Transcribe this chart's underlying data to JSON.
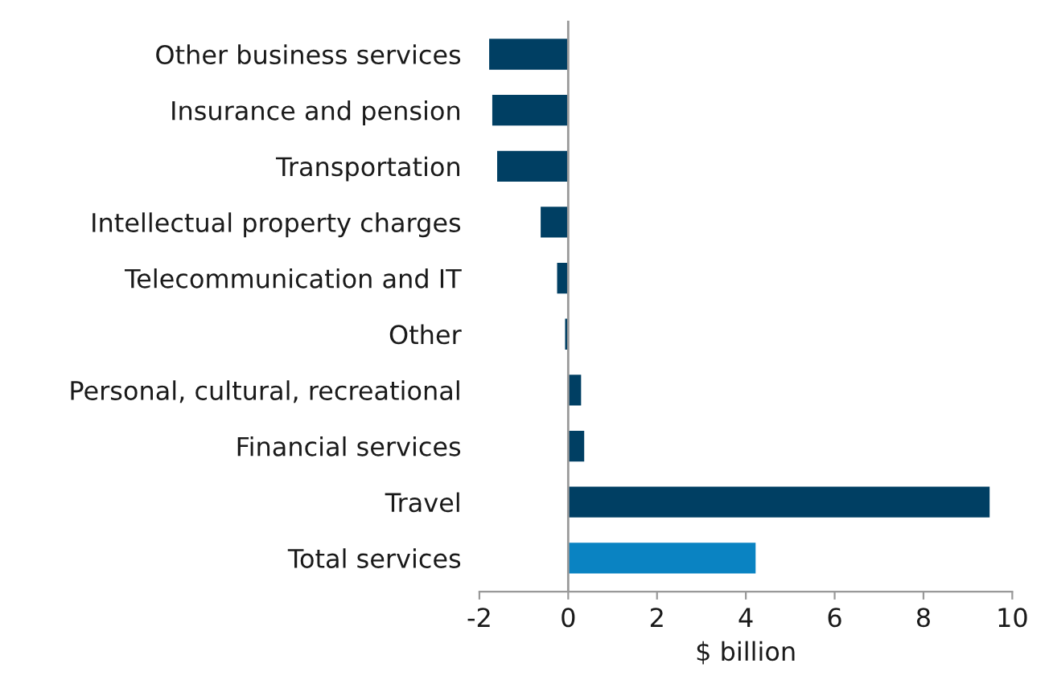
{
  "chart_data": {
    "type": "bar",
    "orientation": "horizontal",
    "xlabel": "$ billion",
    "categories": [
      "Other business services",
      "Insurance and pension",
      "Transportation",
      "Intellectual property charges",
      "Telecommunication and IT",
      "Other",
      "Personal, cultural, recreational",
      "Financial services",
      "Travel",
      "Total services"
    ],
    "values": [
      -1.78,
      -1.71,
      -1.6,
      -0.62,
      -0.25,
      -0.07,
      0.29,
      0.36,
      9.49,
      4.22
    ],
    "colors": [
      "#003f63",
      "#003f63",
      "#003f63",
      "#003f63",
      "#003f63",
      "#003f63",
      "#003f63",
      "#003f63",
      "#003f63",
      "#0a83c2"
    ],
    "xlim": [
      -2,
      10
    ],
    "xticks": [
      -2,
      0,
      2,
      4,
      6,
      8,
      10
    ],
    "ref_lines": [
      {
        "axis": "x",
        "value": 0,
        "color": "#999999"
      }
    ],
    "legend": false
  }
}
